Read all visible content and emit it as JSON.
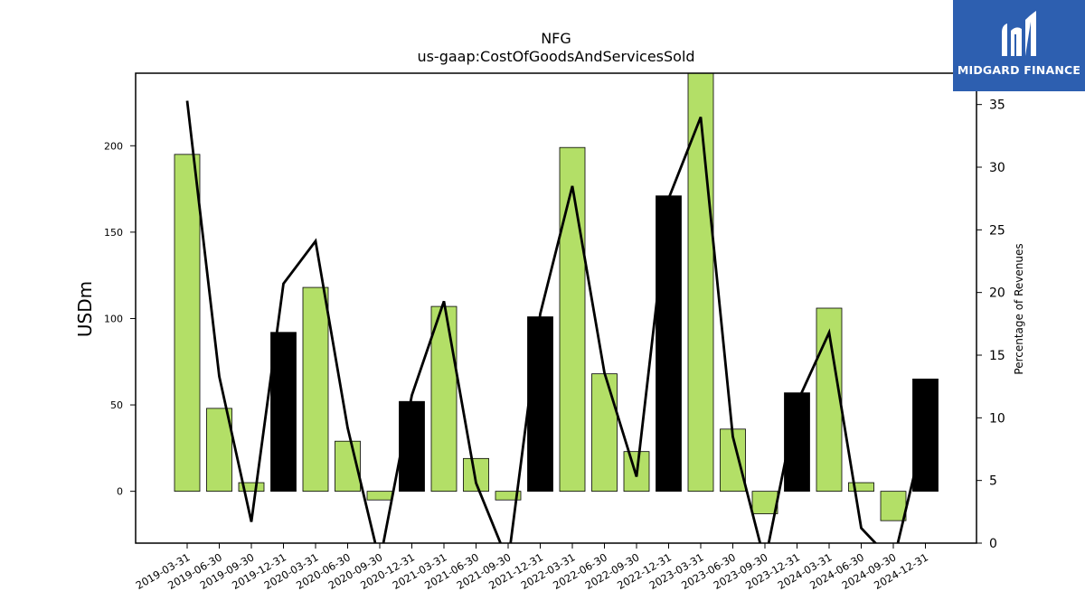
{
  "chart_data": {
    "type": "bar",
    "title": "NFG",
    "subtitle": "us-gaap:CostOfGoodsAndServicesSold",
    "ylabel": "USDm",
    "y2label": "Percentage of Revenues",
    "ylim": [
      -30,
      242
    ],
    "y2lim": [
      0,
      37.5
    ],
    "yticks": [
      0,
      50,
      100,
      150,
      200
    ],
    "y2ticks": [
      0,
      5,
      10,
      15,
      20,
      25,
      30,
      35
    ],
    "categories": [
      "2019-03-31",
      "2019-06-30",
      "2019-09-30",
      "2019-12-31",
      "2020-03-31",
      "2020-06-30",
      "2020-09-30",
      "2020-12-31",
      "2021-03-31",
      "2021-06-30",
      "2021-09-30",
      "2021-12-31",
      "2022-03-31",
      "2022-06-30",
      "2022-09-30",
      "2022-12-31",
      "2023-03-31",
      "2023-06-30",
      "2023-09-30",
      "2023-12-31",
      "2024-03-31",
      "2024-06-30",
      "2024-09-30",
      "2024-12-31"
    ],
    "bar_values": [
      195,
      48,
      5,
      92,
      118,
      29,
      -5,
      52,
      107,
      19,
      -5,
      101,
      199,
      68,
      23,
      171,
      245,
      36,
      -13,
      57,
      106,
      5,
      -17,
      65
    ],
    "bar_colors": [
      "#b3df67",
      "#b3df67",
      "#b3df67",
      "#000000",
      "#b3df67",
      "#b3df67",
      "#b3df67",
      "#000000",
      "#b3df67",
      "#b3df67",
      "#b3df67",
      "#000000",
      "#b3df67",
      "#b3df67",
      "#b3df67",
      "#000000",
      "#b3df67",
      "#b3df67",
      "#b3df67",
      "#000000",
      "#b3df67",
      "#b3df67",
      "#b3df67",
      "#000000"
    ],
    "line_values": [
      35.3,
      13.3,
      1.7,
      20.7,
      24.1,
      9.2,
      -1.5,
      11.8,
      19.3,
      4.8,
      -1.5,
      18.3,
      28.5,
      13.6,
      5.3,
      27.5,
      34.0,
      8.5,
      -1.5,
      11.2,
      16.8,
      1.2,
      -1.5,
      9.2
    ],
    "grid": false
  },
  "logo": {
    "text": "MIDGARD FINANCE",
    "background": "#2d5fb0"
  }
}
